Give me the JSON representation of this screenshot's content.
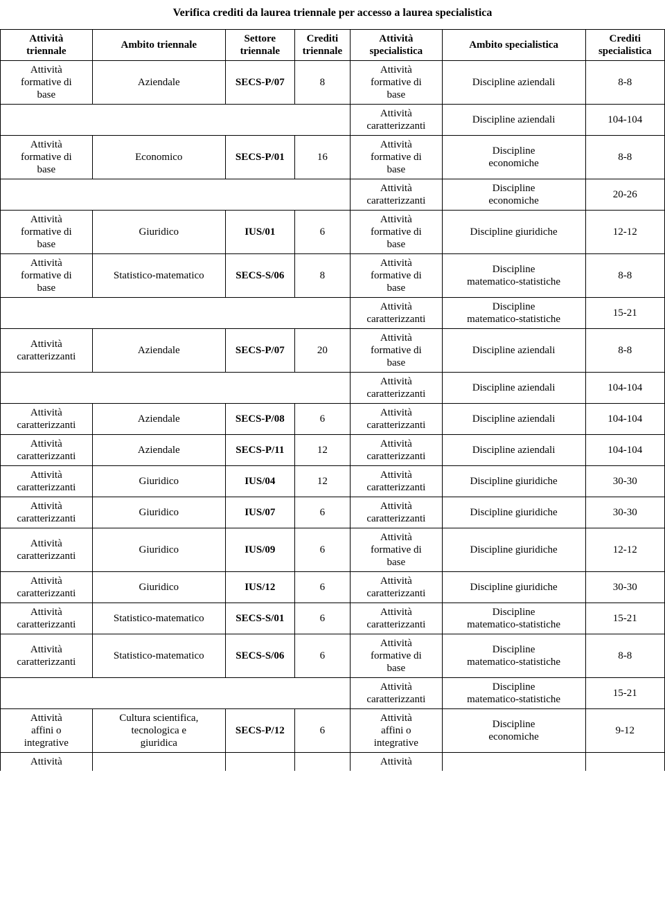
{
  "title": "Verifica crediti da laurea triennale per accesso a laurea specialistica",
  "columns": {
    "c0": "Attività\ntriennale",
    "c1": "Ambito triennale",
    "c2": "Settore\ntriennale",
    "c3": "Crediti\ntriennale",
    "c4": "Attività\nspecialistica",
    "c5": "Ambito specialistica",
    "c6": "Crediti\nspecialistica"
  },
  "text": {
    "afb": "Attività\nformative di\nbase",
    "ac": "Attività\ncaratterizzanti",
    "aai": "Attività\naffini o\nintegrative",
    "att": "Attività",
    "aziendale": "Aziendale",
    "economico": "Economico",
    "giuridico": "Giuridico",
    "statmat": "Statistico-matematico",
    "cultura": "Cultura scientifica,\ntecnologica e\ngiuridica",
    "disc_az": "Discipline aziendali",
    "disc_ec": "Discipline\neconomiche",
    "disc_giur": "Discipline giuridiche",
    "disc_ms": "Discipline\nmatematico-statistiche",
    "secs_p07": "SECS-P/07",
    "secs_p01": "SECS-P/01",
    "secs_p08": "SECS-P/08",
    "secs_p11": "SECS-P/11",
    "secs_p12": "SECS-P/12",
    "secs_s01": "SECS-S/01",
    "secs_s06": "SECS-S/06",
    "ius01": "IUS/01",
    "ius04": "IUS/04",
    "ius07": "IUS/07",
    "ius09": "IUS/09",
    "ius12": "IUS/12"
  },
  "num": {
    "n6": "6",
    "n8": "8",
    "n12": "12",
    "n16": "16",
    "n20": "20",
    "r8_8": "8-8",
    "r104": "104-104",
    "r20_26": "20-26",
    "r12_12": "12-12",
    "r15_21": "15-21",
    "r30_30": "30-30",
    "r9_12": "9-12"
  },
  "widths": {
    "c0": 109,
    "c1": 158,
    "c2": 82,
    "c3": 66,
    "c4": 109,
    "c5": 170,
    "c6": 94
  }
}
